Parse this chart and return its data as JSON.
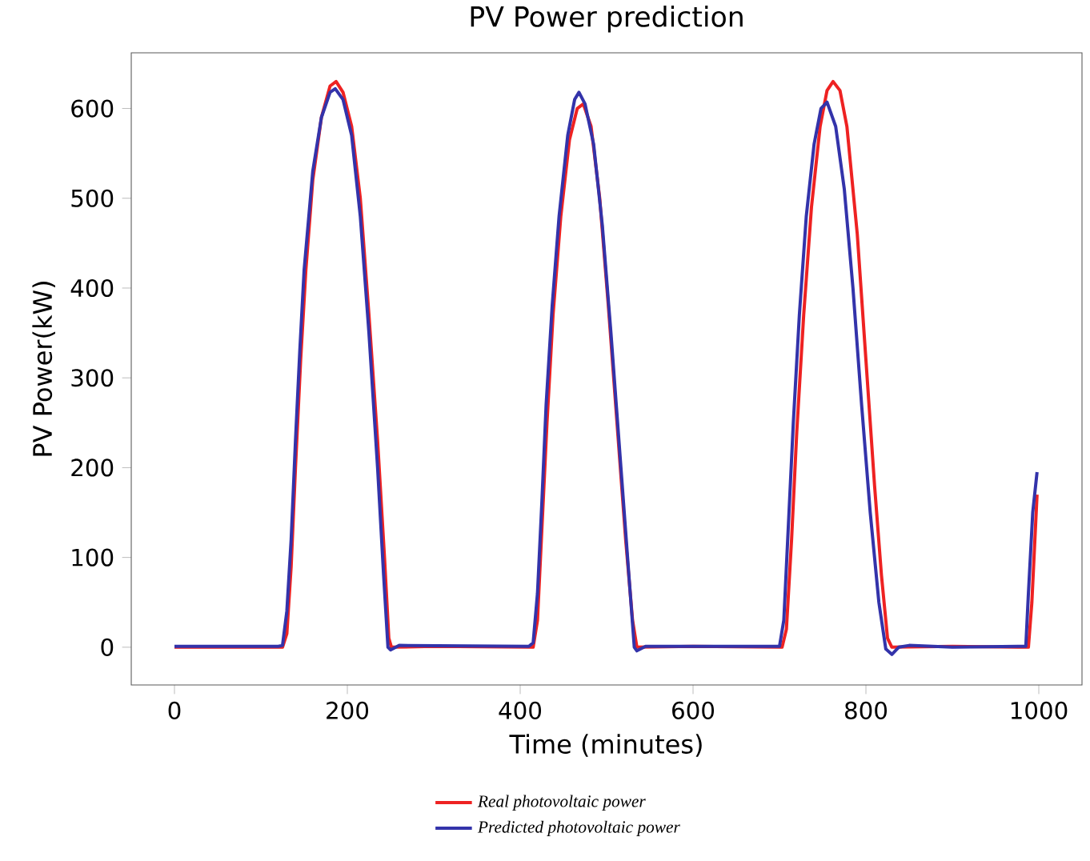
{
  "chart_data": {
    "type": "line",
    "title": "PV Power prediction",
    "xlabel": "Time (minutes)",
    "ylabel": "PV Power(kW)",
    "xlim": [
      -50,
      1050
    ],
    "ylim": [
      -42,
      662
    ],
    "xticks": [
      0,
      200,
      400,
      600,
      800,
      1000
    ],
    "yticks": [
      0,
      100,
      200,
      300,
      400,
      500,
      600
    ],
    "grid": false,
    "legend": "bottom",
    "marker": "none",
    "line_style": "solid",
    "series": [
      {
        "name": "Real photovoltaic power",
        "color": "#ee2222",
        "x": [
          0,
          125,
          130,
          135,
          140,
          146,
          152,
          160,
          170,
          180,
          187,
          195,
          205,
          215,
          225,
          235,
          243,
          248,
          251,
          300,
          415,
          420,
          425,
          431,
          438,
          447,
          457,
          466,
          473,
          482,
          492,
          502,
          512,
          522,
          530,
          535,
          600,
          703,
          708,
          714,
          720,
          728,
          737,
          747,
          755,
          762,
          770,
          778,
          790,
          800,
          810,
          818,
          825,
          830,
          900,
          988,
          992,
          996,
          998
        ],
        "values": [
          0,
          0,
          15,
          90,
          200,
          320,
          420,
          520,
          590,
          625,
          630,
          618,
          580,
          500,
          370,
          230,
          100,
          10,
          0,
          1,
          0,
          30,
          130,
          250,
          370,
          480,
          565,
          600,
          605,
          580,
          500,
          380,
          250,
          120,
          30,
          0,
          1,
          0,
          20,
          120,
          240,
          370,
          490,
          580,
          620,
          630,
          620,
          580,
          460,
          320,
          180,
          80,
          10,
          0,
          1,
          0,
          50,
          130,
          170
        ]
      },
      {
        "name": "Predicted photovoltaic power",
        "color": "#3333aa",
        "x": [
          0,
          120,
          125,
          130,
          135,
          140,
          145,
          150,
          160,
          170,
          180,
          186,
          195,
          205,
          215,
          225,
          235,
          242,
          247,
          250,
          260,
          410,
          415,
          420,
          425,
          430,
          437,
          445,
          455,
          463,
          468,
          475,
          485,
          495,
          505,
          515,
          525,
          532,
          535,
          545,
          700,
          705,
          710,
          716,
          723,
          731,
          740,
          748,
          755,
          765,
          775,
          785,
          795,
          805,
          815,
          823,
          830,
          838,
          850,
          900,
          985,
          988,
          993,
          998
        ],
        "values": [
          1,
          1,
          2,
          40,
          120,
          230,
          330,
          420,
          530,
          590,
          618,
          622,
          610,
          570,
          480,
          350,
          200,
          80,
          0,
          -3,
          2,
          1,
          5,
          60,
          160,
          270,
          380,
          480,
          570,
          610,
          618,
          605,
          560,
          470,
          350,
          220,
          90,
          0,
          -4,
          1,
          1,
          30,
          130,
          250,
          370,
          480,
          560,
          600,
          607,
          580,
          510,
          400,
          270,
          150,
          50,
          -2,
          -8,
          0,
          2,
          0,
          1,
          60,
          150,
          195
        ]
      }
    ]
  }
}
